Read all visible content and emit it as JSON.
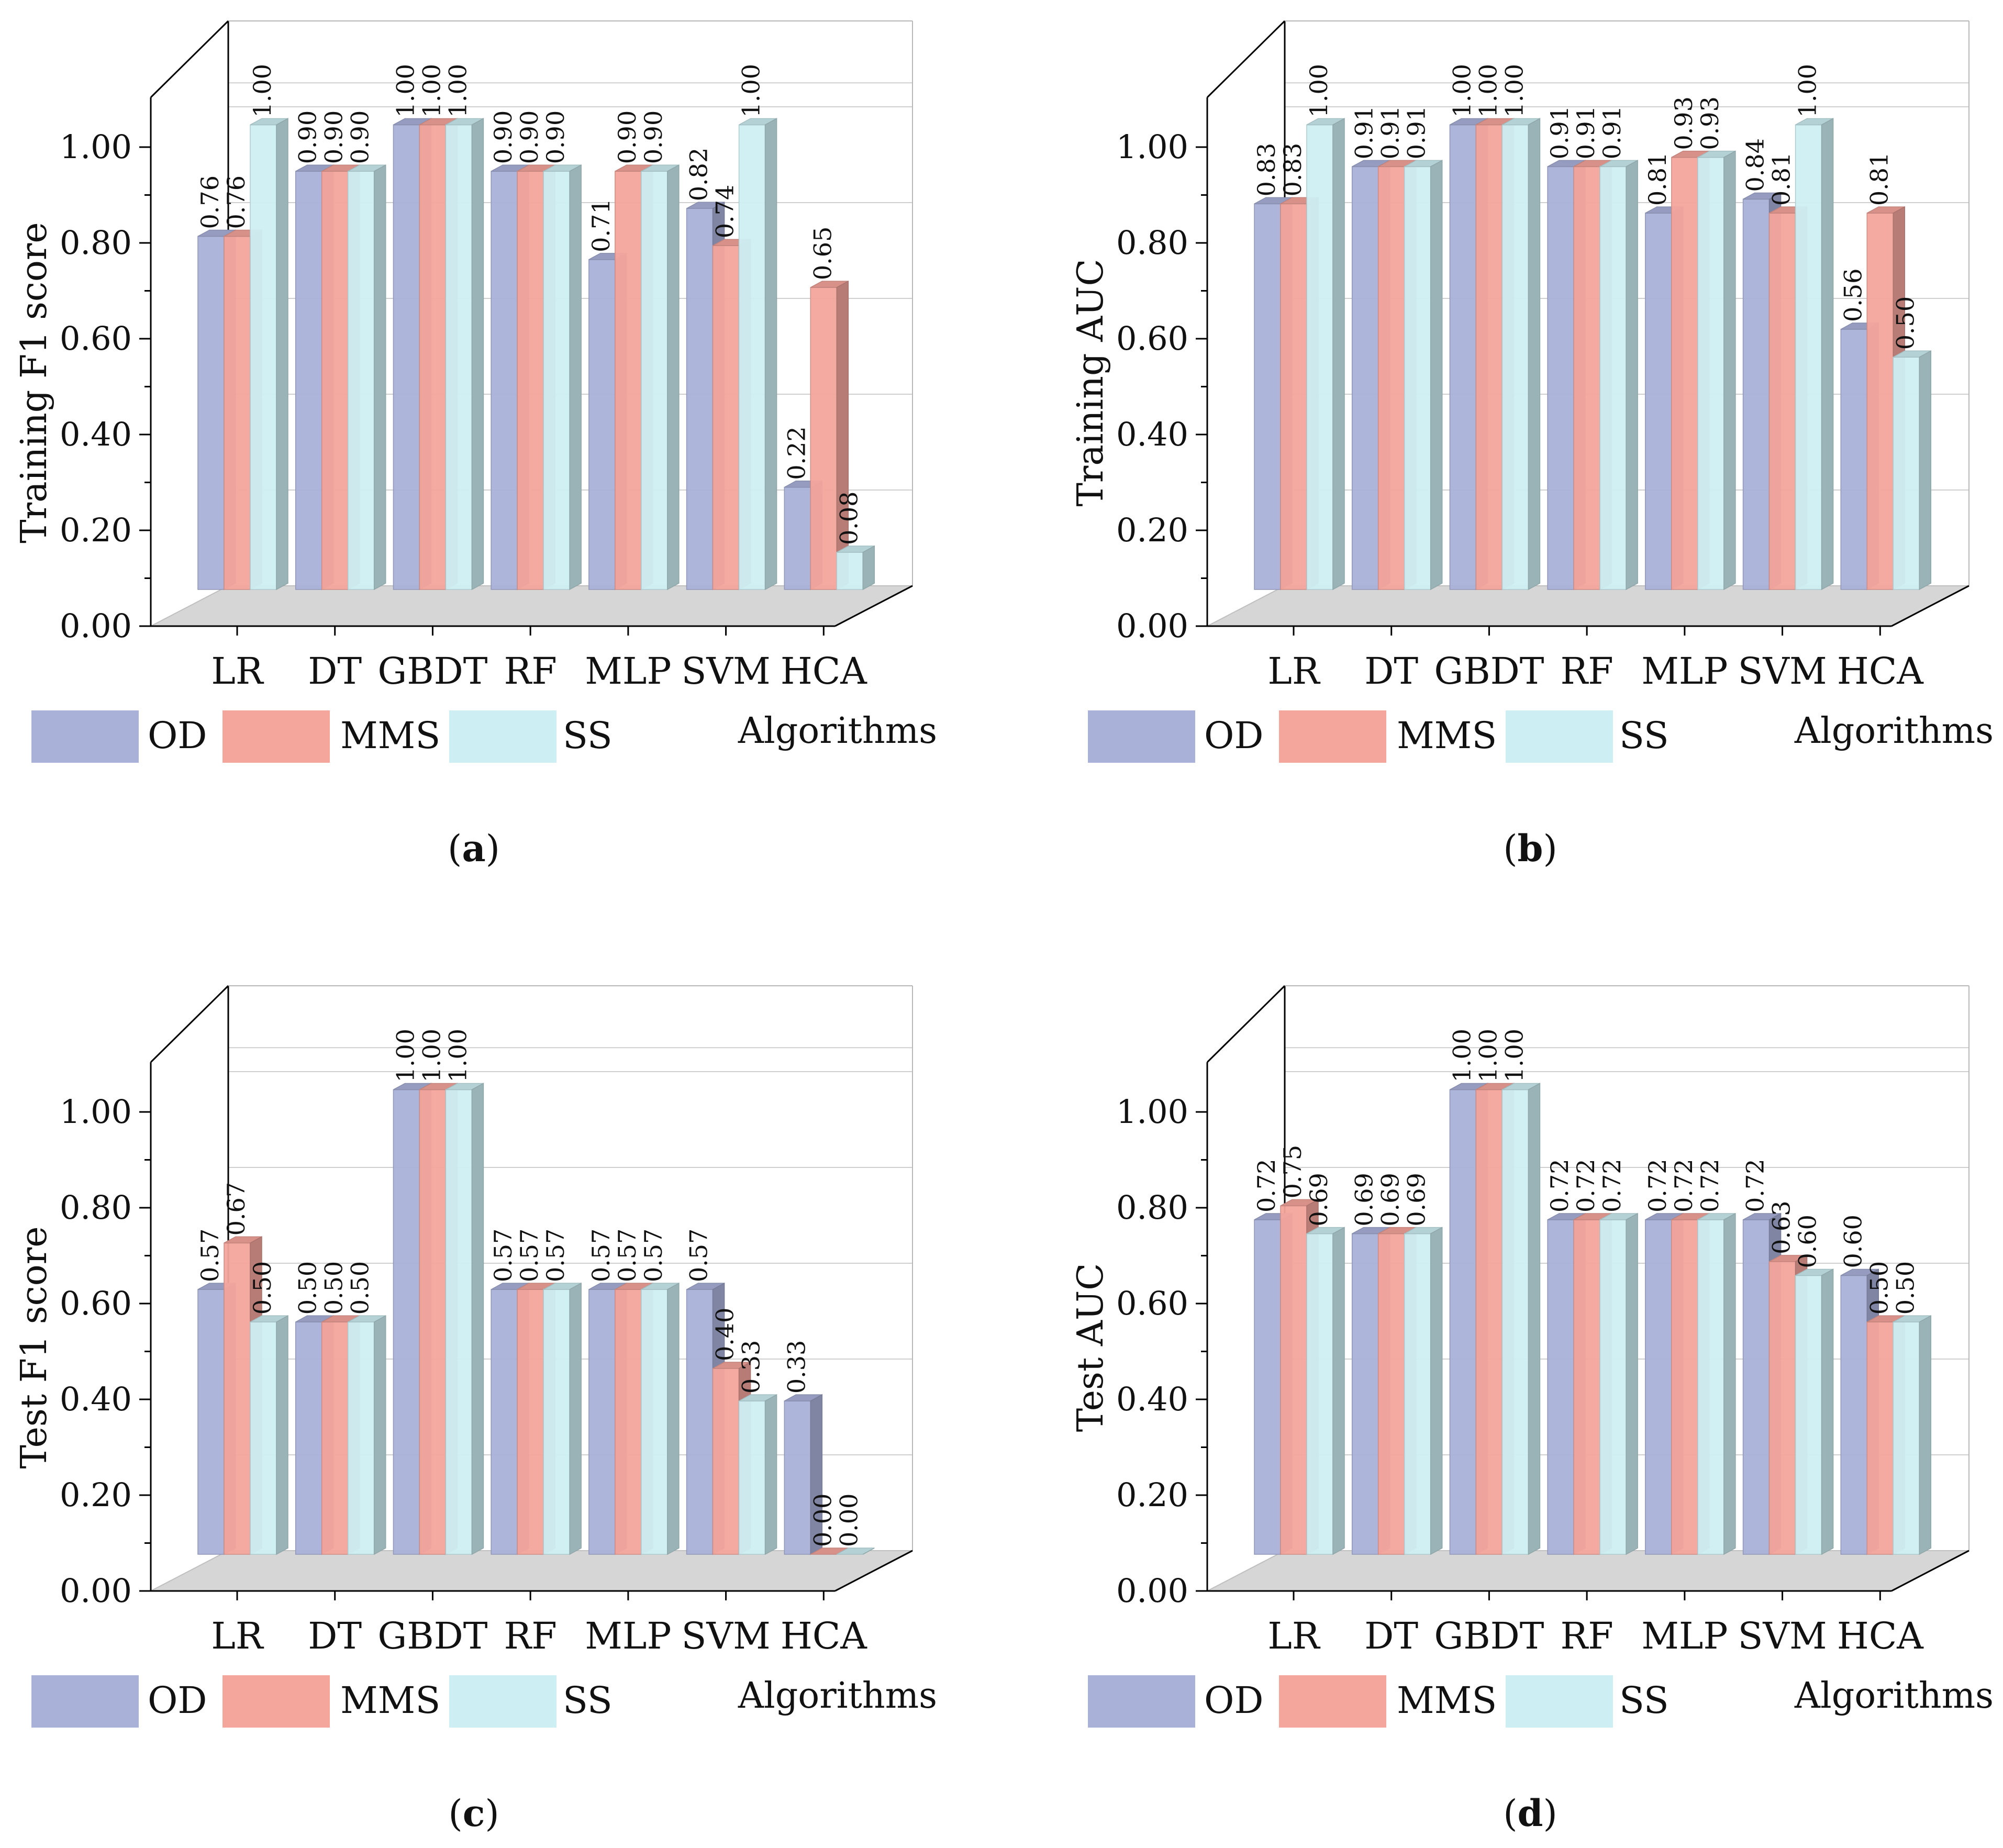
{
  "colors": {
    "OD": "#a9b1d9",
    "MMS": "#f4a59c",
    "SS": "#cdeff3",
    "floor": "#d6d6d6",
    "grid": "#cfcfcf",
    "axis": "#000000"
  },
  "chart_data": [
    {
      "type": "bar",
      "panel": "a",
      "caption": {
        "open": "(",
        "letter": "a",
        "close": ")"
      },
      "ylabel": "Training F1 score",
      "xlabel": "Algorithms",
      "ylim": [
        0,
        1.05
      ],
      "yticks": [
        "0.00",
        "0.20",
        "0.40",
        "0.60",
        "0.80",
        "1.00"
      ],
      "categories": [
        "LR",
        "DT",
        "GBDT",
        "RF",
        "MLP",
        "SVM",
        "HCA"
      ],
      "series": [
        {
          "name": "OD",
          "values": [
            0.76,
            0.9,
            1.0,
            0.9,
            0.71,
            0.82,
            0.22
          ],
          "labels": [
            "0.76",
            "0.90",
            "1.00",
            "0.90",
            "0.71",
            "0.82",
            "0.22"
          ]
        },
        {
          "name": "MMS",
          "values": [
            0.76,
            0.9,
            1.0,
            0.9,
            0.9,
            0.74,
            0.65
          ],
          "labels": [
            "0.76",
            "0.90",
            "1.00",
            "0.90",
            "0.90",
            "0.74",
            "0.65"
          ]
        },
        {
          "name": "SS",
          "values": [
            1.0,
            0.9,
            1.0,
            0.9,
            0.9,
            1.0,
            0.08
          ],
          "labels": [
            "1.00",
            "0.90",
            "1.00",
            "0.90",
            "0.90",
            "1.00",
            "0.08"
          ]
        }
      ]
    },
    {
      "type": "bar",
      "panel": "b",
      "caption": {
        "open": "(",
        "letter": "b",
        "close": ")"
      },
      "ylabel": "Training AUC",
      "xlabel": "Algorithms",
      "ylim": [
        0,
        1.05
      ],
      "yticks": [
        "0.00",
        "0.20",
        "0.40",
        "0.60",
        "0.80",
        "1.00"
      ],
      "categories": [
        "LR",
        "DT",
        "GBDT",
        "RF",
        "MLP",
        "SVM",
        "HCA"
      ],
      "series": [
        {
          "name": "OD",
          "values": [
            0.83,
            0.91,
            1.0,
            0.91,
            0.81,
            0.84,
            0.56
          ],
          "labels": [
            "0.83",
            "0.91",
            "1.00",
            "0.91",
            "0.81",
            "0.84",
            "0.56"
          ]
        },
        {
          "name": "MMS",
          "values": [
            0.83,
            0.91,
            1.0,
            0.91,
            0.93,
            0.81,
            0.81
          ],
          "labels": [
            "0.83",
            "0.91",
            "1.00",
            "0.91",
            "0.93",
            "0.81",
            "0.81"
          ]
        },
        {
          "name": "SS",
          "values": [
            1.0,
            0.91,
            1.0,
            0.91,
            0.93,
            1.0,
            0.5
          ],
          "labels": [
            "1.00",
            "0.91",
            "1.00",
            "0.91",
            "0.93",
            "1.00",
            "0.50"
          ]
        }
      ]
    },
    {
      "type": "bar",
      "panel": "c",
      "caption": {
        "open": "(",
        "letter": "c",
        "close": ")"
      },
      "ylabel": "Test F1 score",
      "xlabel": "Algorithms",
      "ylim": [
        0,
        1.05
      ],
      "yticks": [
        "0.00",
        "0.20",
        "0.40",
        "0.60",
        "0.80",
        "1.00"
      ],
      "categories": [
        "LR",
        "DT",
        "GBDT",
        "RF",
        "MLP",
        "SVM",
        "HCA"
      ],
      "series": [
        {
          "name": "OD",
          "values": [
            0.57,
            0.5,
            1.0,
            0.57,
            0.57,
            0.57,
            0.33
          ],
          "labels": [
            "0.57",
            "0.50",
            "1.00",
            "0.57",
            "0.57",
            "0.57",
            "0.33"
          ]
        },
        {
          "name": "MMS",
          "values": [
            0.67,
            0.5,
            1.0,
            0.57,
            0.57,
            0.4,
            0.0
          ],
          "labels": [
            "0.67",
            "0.50",
            "1.00",
            "0.57",
            "0.57",
            "0.40",
            "0.00"
          ]
        },
        {
          "name": "SS",
          "values": [
            0.5,
            0.5,
            1.0,
            0.57,
            0.57,
            0.33,
            0.0
          ],
          "labels": [
            "0.50",
            "0.50",
            "1.00",
            "0.57",
            "0.57",
            "0.33",
            "0.00"
          ]
        }
      ]
    },
    {
      "type": "bar",
      "panel": "d",
      "caption": {
        "open": "(",
        "letter": "d",
        "close": ")"
      },
      "ylabel": "Test AUC",
      "xlabel": "Algorithms",
      "ylim": [
        0,
        1.05
      ],
      "yticks": [
        "0.00",
        "0.20",
        "0.40",
        "0.60",
        "0.80",
        "1.00"
      ],
      "categories": [
        "LR",
        "DT",
        "GBDT",
        "RF",
        "MLP",
        "SVM",
        "HCA"
      ],
      "series": [
        {
          "name": "OD",
          "values": [
            0.72,
            0.69,
            1.0,
            0.72,
            0.72,
            0.72,
            0.6
          ],
          "labels": [
            "0.72",
            "0.69",
            "1.00",
            "0.72",
            "0.72",
            "0.72",
            "0.60"
          ]
        },
        {
          "name": "MMS",
          "values": [
            0.75,
            0.69,
            1.0,
            0.72,
            0.72,
            0.63,
            0.5
          ],
          "labels": [
            "0.75",
            "0.69",
            "1.00",
            "0.72",
            "0.72",
            "0.63",
            "0.50"
          ]
        },
        {
          "name": "SS",
          "values": [
            0.69,
            0.69,
            1.0,
            0.72,
            0.72,
            0.6,
            0.5
          ],
          "labels": [
            "0.69",
            "0.69",
            "1.00",
            "0.72",
            "0.72",
            "0.60",
            "0.50"
          ]
        }
      ]
    }
  ]
}
